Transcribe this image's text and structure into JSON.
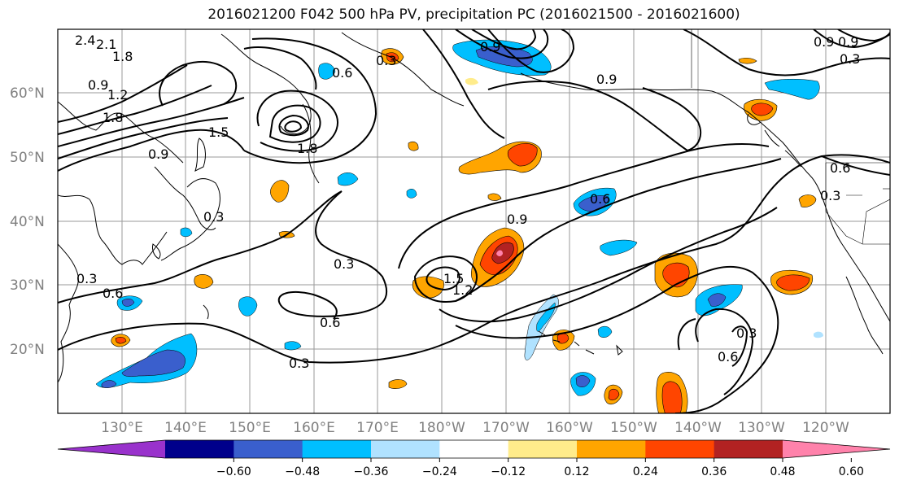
{
  "title": "2016021200 F042 500 hPa PV, precipitation PC (2016021500 - 2016021600)",
  "lat_labels": [
    "60°N",
    "50°N",
    "40°N",
    "30°N",
    "20°N"
  ],
  "lon_labels": [
    "130°E",
    "140°E",
    "150°E",
    "160°E",
    "170°E",
    "180°W",
    "170°W",
    "160°W",
    "150°W",
    "140°W",
    "130°W",
    "120°W"
  ],
  "colorbar": {
    "ticks": [
      "−0.60",
      "−0.48",
      "−0.36",
      "−0.24",
      "−0.12",
      "0.12",
      "0.24",
      "0.36",
      "0.48",
      "0.60"
    ],
    "colors": [
      "#9932cc",
      "#00008b",
      "#3a5fcd",
      "#00bfff",
      "#b0e2ff",
      "#ffffff",
      "#ffec8b",
      "#ffa500",
      "#ff4500",
      "#b22222",
      "#ff82ab"
    ]
  },
  "contour_labels": [
    "2.4",
    "2.1",
    "1.8",
    "0.9",
    "1.2",
    "1.8",
    "1.5",
    "1.8",
    "0.9",
    "0.6",
    "0.3",
    "0.3",
    "0.3",
    "0.6",
    "0.6",
    "0.3",
    "0.9",
    "1.5",
    "1.2",
    "0.9",
    "0.6",
    "0.9",
    "0.3",
    "0.6",
    "0.3",
    "0.6",
    "0.3",
    "0.9",
    "0.3",
    "0.9"
  ]
}
